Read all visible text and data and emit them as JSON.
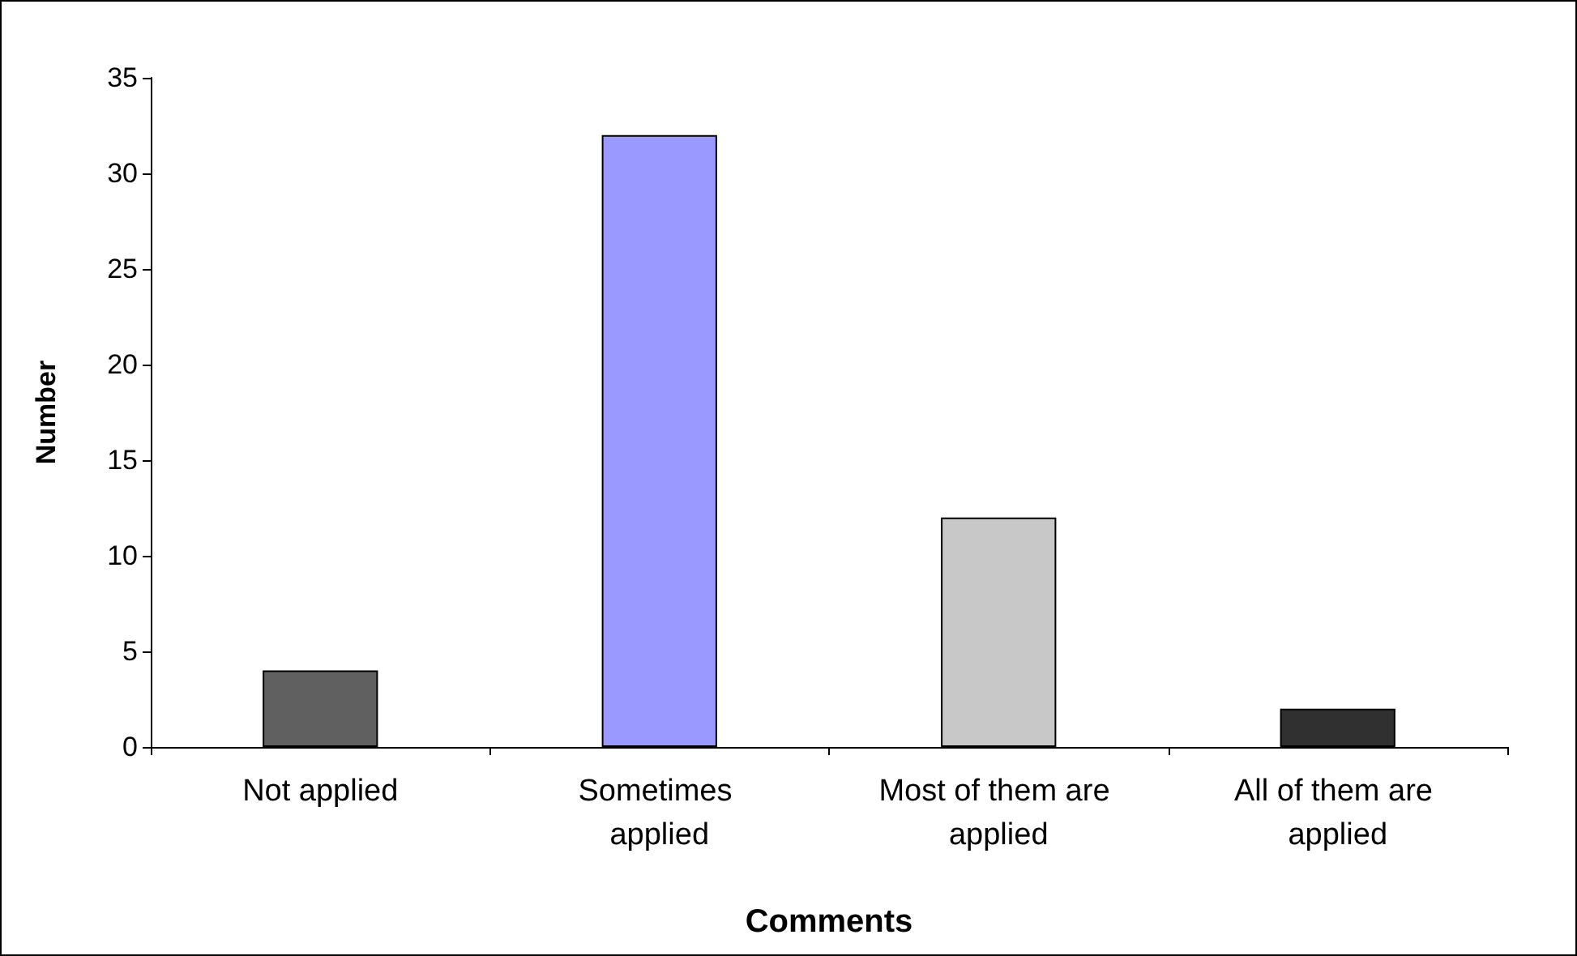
{
  "chart_data": {
    "type": "bar",
    "xlabel": "Comments",
    "ylabel": "Number",
    "categories": [
      "Not applied",
      "Sometimes applied",
      "Most of them are applied",
      "All of them are applied"
    ],
    "values": [
      4,
      32,
      12,
      2
    ],
    "colors": [
      "#606060",
      "#9999ff",
      "#c8c8c8",
      "#303030"
    ],
    "ylim": [
      0,
      35
    ],
    "yticks": [
      0,
      5,
      10,
      15,
      20,
      25,
      30,
      35
    ],
    "grid": false
  }
}
